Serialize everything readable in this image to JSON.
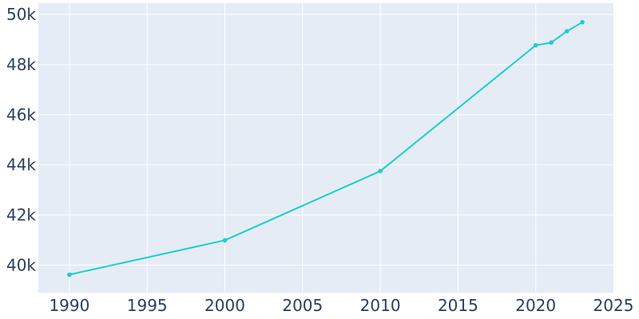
{
  "chart_data": {
    "type": "line",
    "title": "",
    "xlabel": "",
    "ylabel": "",
    "xlim": [
      1988,
      2025
    ],
    "ylim": [
      38900,
      50450
    ],
    "x_ticks": [
      1990,
      1995,
      2000,
      2005,
      2010,
      2015,
      2020,
      2025
    ],
    "y_ticks": [
      40000,
      42000,
      44000,
      46000,
      48000,
      50000
    ],
    "y_tick_labels": [
      "40k",
      "42k",
      "44k",
      "46k",
      "48k",
      "50k"
    ],
    "grid": true,
    "series": [
      {
        "x": [
          1990,
          2000,
          2010,
          2020,
          2021,
          2022,
          2023
        ],
        "values": [
          39620,
          40990,
          43750,
          48770,
          48880,
          49330,
          49690
        ]
      }
    ],
    "colors": {
      "plot_background": "#e5ecf6",
      "grid": "#ffffff",
      "line": "#1ccfc9",
      "tick_text": "#2a3f5f"
    }
  }
}
